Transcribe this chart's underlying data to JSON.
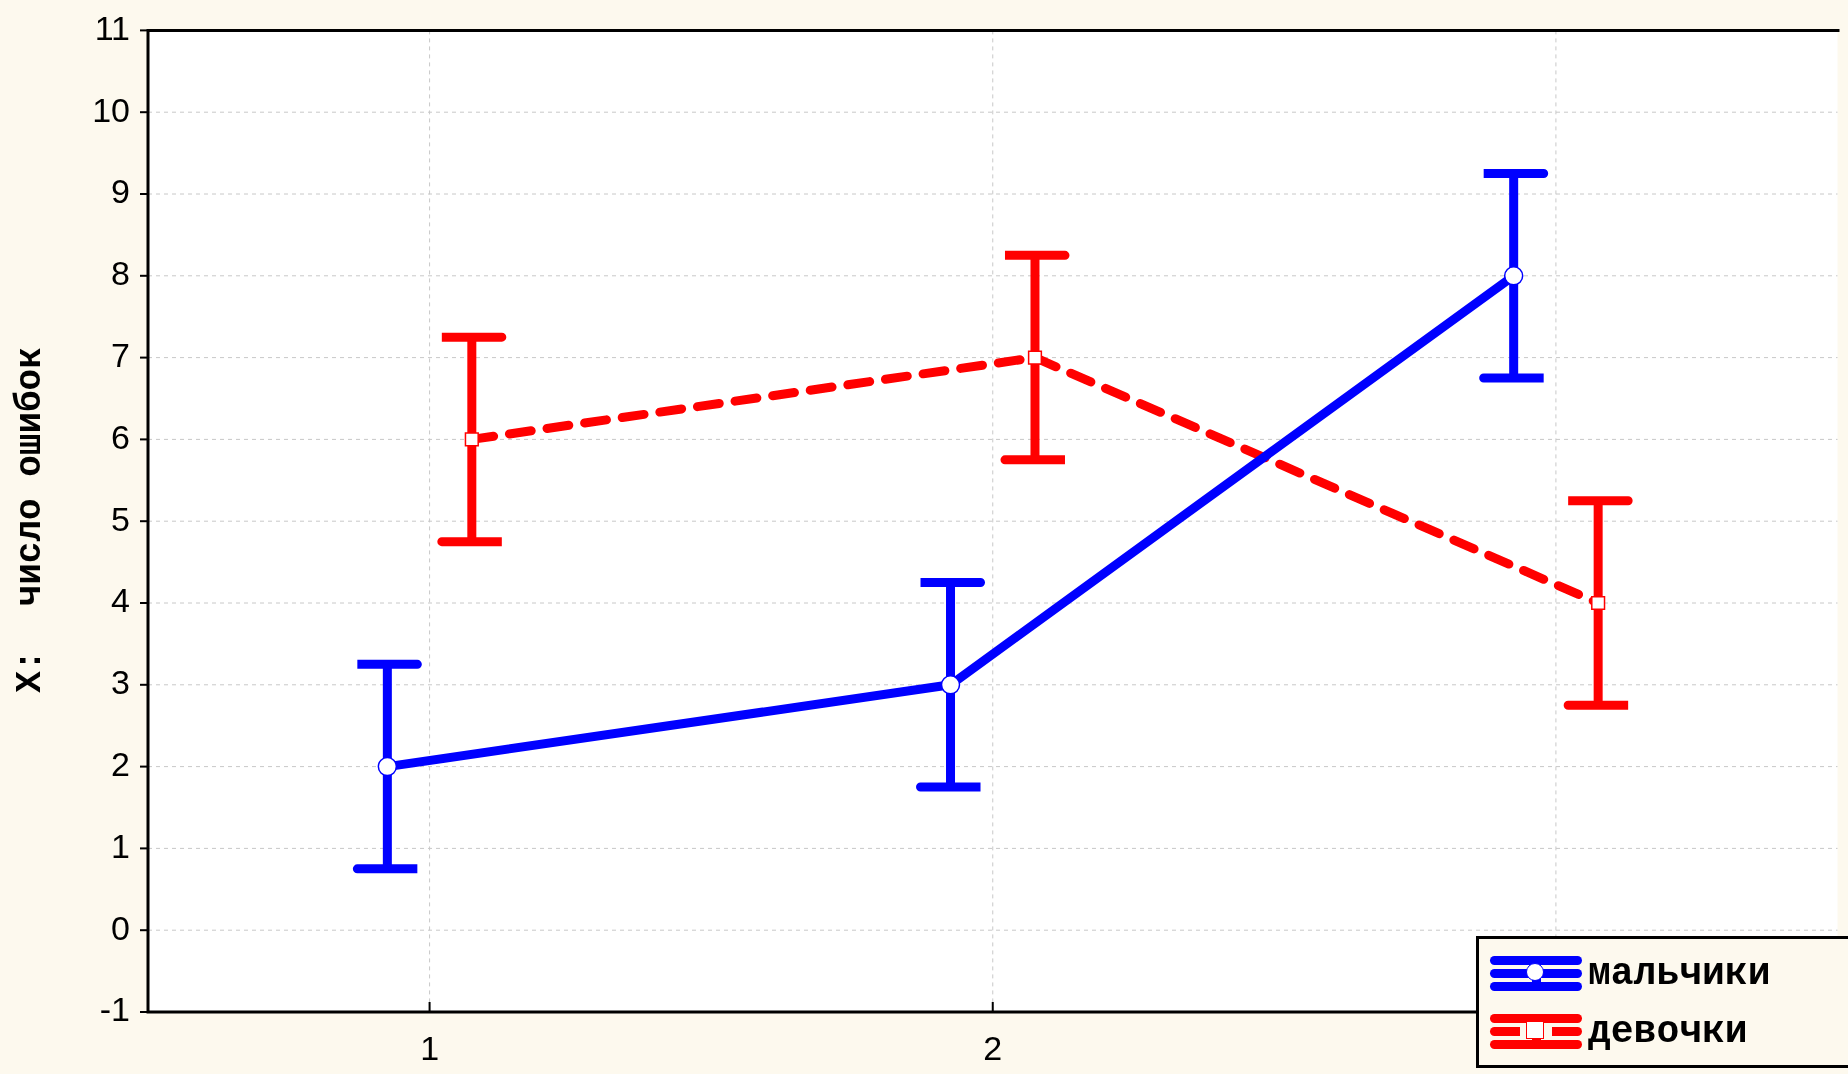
{
  "chart_data": {
    "type": "line",
    "ylabel": "X:  число ошибок",
    "xlim": [
      0.5,
      3.5
    ],
    "xticks": [
      1,
      2,
      {
        "value": 3,
        "label": null
      }
    ],
    "ylim": [
      -1,
      11
    ],
    "yticks": [
      -1,
      0,
      1,
      2,
      3,
      4,
      5,
      6,
      7,
      8,
      9,
      10,
      11
    ],
    "grid": true,
    "legend": "bottom right",
    "series": [
      {
        "name": "мальчики",
        "color": "#0000ff",
        "x": [
          0.925,
          1.925,
          2.925
        ],
        "values": [
          2,
          3,
          8
        ],
        "errors": [
          1.25,
          1.25,
          1.25
        ],
        "marker": "circle",
        "line_style": "solid"
      },
      {
        "name": "девочки",
        "color": "#ff0000",
        "x": [
          1.075,
          2.075,
          3.075
        ],
        "values": [
          6,
          7,
          4
        ],
        "errors": [
          1.25,
          1.25,
          1.25
        ],
        "marker": "square",
        "line_style": "dashed"
      }
    ]
  }
}
